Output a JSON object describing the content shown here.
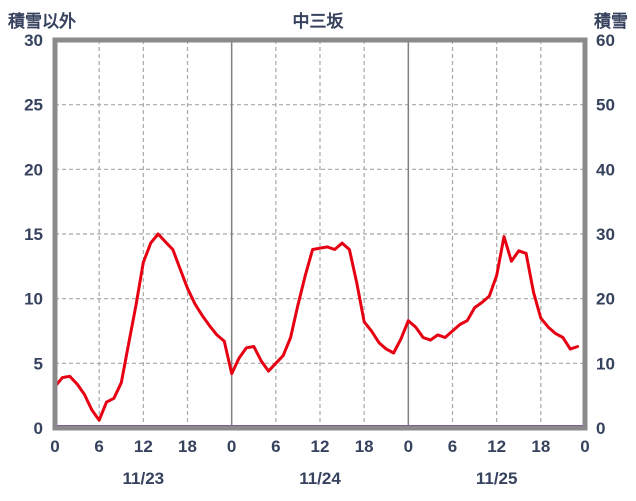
{
  "colors": {
    "text": "#36425e",
    "temp_line": "#e60012",
    "snow_line": "#7030a0",
    "frame": "#8a8a8a",
    "grid_major": "#7f7f7f",
    "grid_minor": "#a8a8a8",
    "background": "#ffffff"
  },
  "chart_data": {
    "type": "line",
    "title": "中三坂",
    "left_axis": {
      "label": "積雪以外",
      "min": 0,
      "max": 30,
      "ticks": [
        0,
        5,
        10,
        15,
        20,
        25,
        30
      ]
    },
    "right_axis": {
      "label": "積雪",
      "min": 0,
      "max": 60,
      "ticks": [
        0,
        10,
        20,
        30,
        40,
        50,
        60
      ]
    },
    "x_axis": {
      "min_hour": 0,
      "max_hour": 72,
      "tick_hours": [
        0,
        6,
        12,
        18,
        24,
        30,
        36,
        42,
        48,
        54,
        60,
        66,
        72
      ],
      "tick_labels": [
        "0",
        "6",
        "12",
        "18",
        "0",
        "6",
        "12",
        "18",
        "0",
        "6",
        "12",
        "18",
        "0"
      ],
      "day_labels": [
        {
          "label": "11/23",
          "hour": 12
        },
        {
          "label": "11/24",
          "hour": 36
        },
        {
          "label": "11/25",
          "hour": 60
        }
      ]
    },
    "series": [
      {
        "name": "積雪以外",
        "axis": "left",
        "color_key": "temp_line",
        "x_start": 0,
        "x_step": 1,
        "values": [
          3.2,
          3.9,
          4.0,
          3.4,
          2.6,
          1.4,
          0.6,
          2.0,
          2.3,
          3.5,
          6.5,
          9.5,
          12.8,
          14.3,
          15.0,
          14.4,
          13.8,
          12.3,
          10.8,
          9.6,
          8.7,
          7.9,
          7.2,
          6.7,
          4.2,
          5.4,
          6.2,
          6.3,
          5.2,
          4.4,
          5.0,
          5.6,
          7.0,
          9.5,
          11.8,
          13.8,
          13.9,
          14.0,
          13.8,
          14.3,
          13.8,
          11.2,
          8.2,
          7.5,
          6.6,
          6.1,
          5.8,
          6.9,
          8.3,
          7.8,
          7.0,
          6.8,
          7.2,
          7.0,
          7.5,
          8.0,
          8.3,
          9.3,
          9.7,
          10.2,
          11.8,
          14.8,
          12.9,
          13.7,
          13.5,
          10.5,
          8.5,
          7.8,
          7.3,
          7.0,
          6.1,
          6.3
        ]
      },
      {
        "name": "積雪",
        "axis": "right",
        "color_key": "snow_line",
        "x_hours": [
          0,
          72
        ],
        "values": [
          0,
          0
        ]
      }
    ],
    "grid": "dashed horizontal at each left tick; dashed vertical at 6h intervals; solid vertical at day boundaries"
  }
}
